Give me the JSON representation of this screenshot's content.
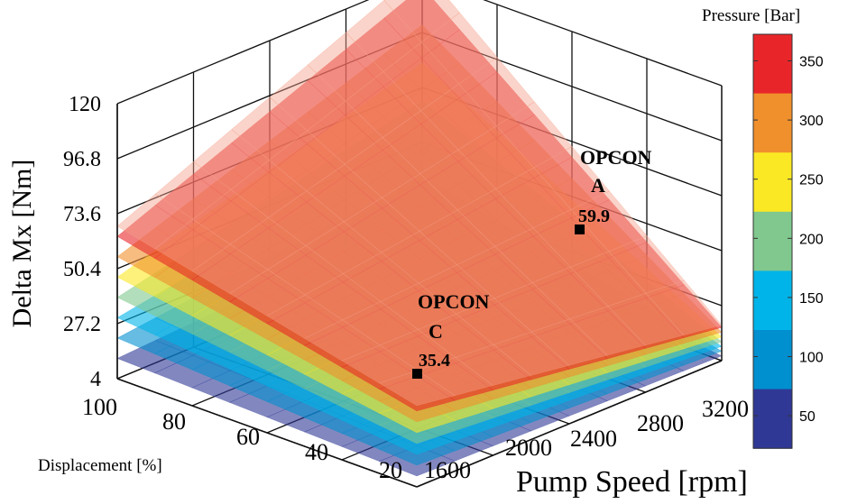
{
  "chart_data": {
    "type": "surface",
    "zlabel": "Delta Mx [Nm]",
    "xlabel": "Displacement [%]",
    "ylabel": "Pump Speed [rpm]",
    "z_ticks": [
      "4",
      "27.2",
      "50.4",
      "73.6",
      "96.8",
      "120"
    ],
    "zlim": [
      4,
      120
    ],
    "x_ticks": [
      "100",
      "80",
      "60",
      "40",
      "20"
    ],
    "xlim": [
      20,
      100
    ],
    "y_ticks": [
      "1600",
      "2000",
      "2400",
      "2800",
      "3200"
    ],
    "ylim": [
      1600,
      3200
    ],
    "colorbar": {
      "title": "Pressure [Bar]",
      "ticks": [
        "350",
        "300",
        "250",
        "200",
        "150",
        "100",
        "50"
      ],
      "bands": [
        "#e8262a",
        "#f0902c",
        "#fbe824",
        "#80c88e",
        "#00b4ea",
        "#008fcf",
        "#2f3895"
      ]
    },
    "surfaces": [
      {
        "pressure": 50,
        "color": "#2f3895"
      },
      {
        "pressure": 100,
        "color": "#008fcf"
      },
      {
        "pressure": 150,
        "color": "#00b4ea"
      },
      {
        "pressure": 200,
        "color": "#80c88e"
      },
      {
        "pressure": 250,
        "color": "#fbe824"
      },
      {
        "pressure": 300,
        "color": "#f0902c"
      },
      {
        "pressure": 350,
        "color": "#e8262a"
      },
      {
        "pressure": 375,
        "color": "#f4a08a"
      }
    ],
    "annotations": [
      {
        "name_line1": "OPCON",
        "name_line2": "A",
        "value": "59.9"
      },
      {
        "name_line1": "OPCON",
        "name_line2": "C",
        "value": "35.4"
      }
    ]
  }
}
